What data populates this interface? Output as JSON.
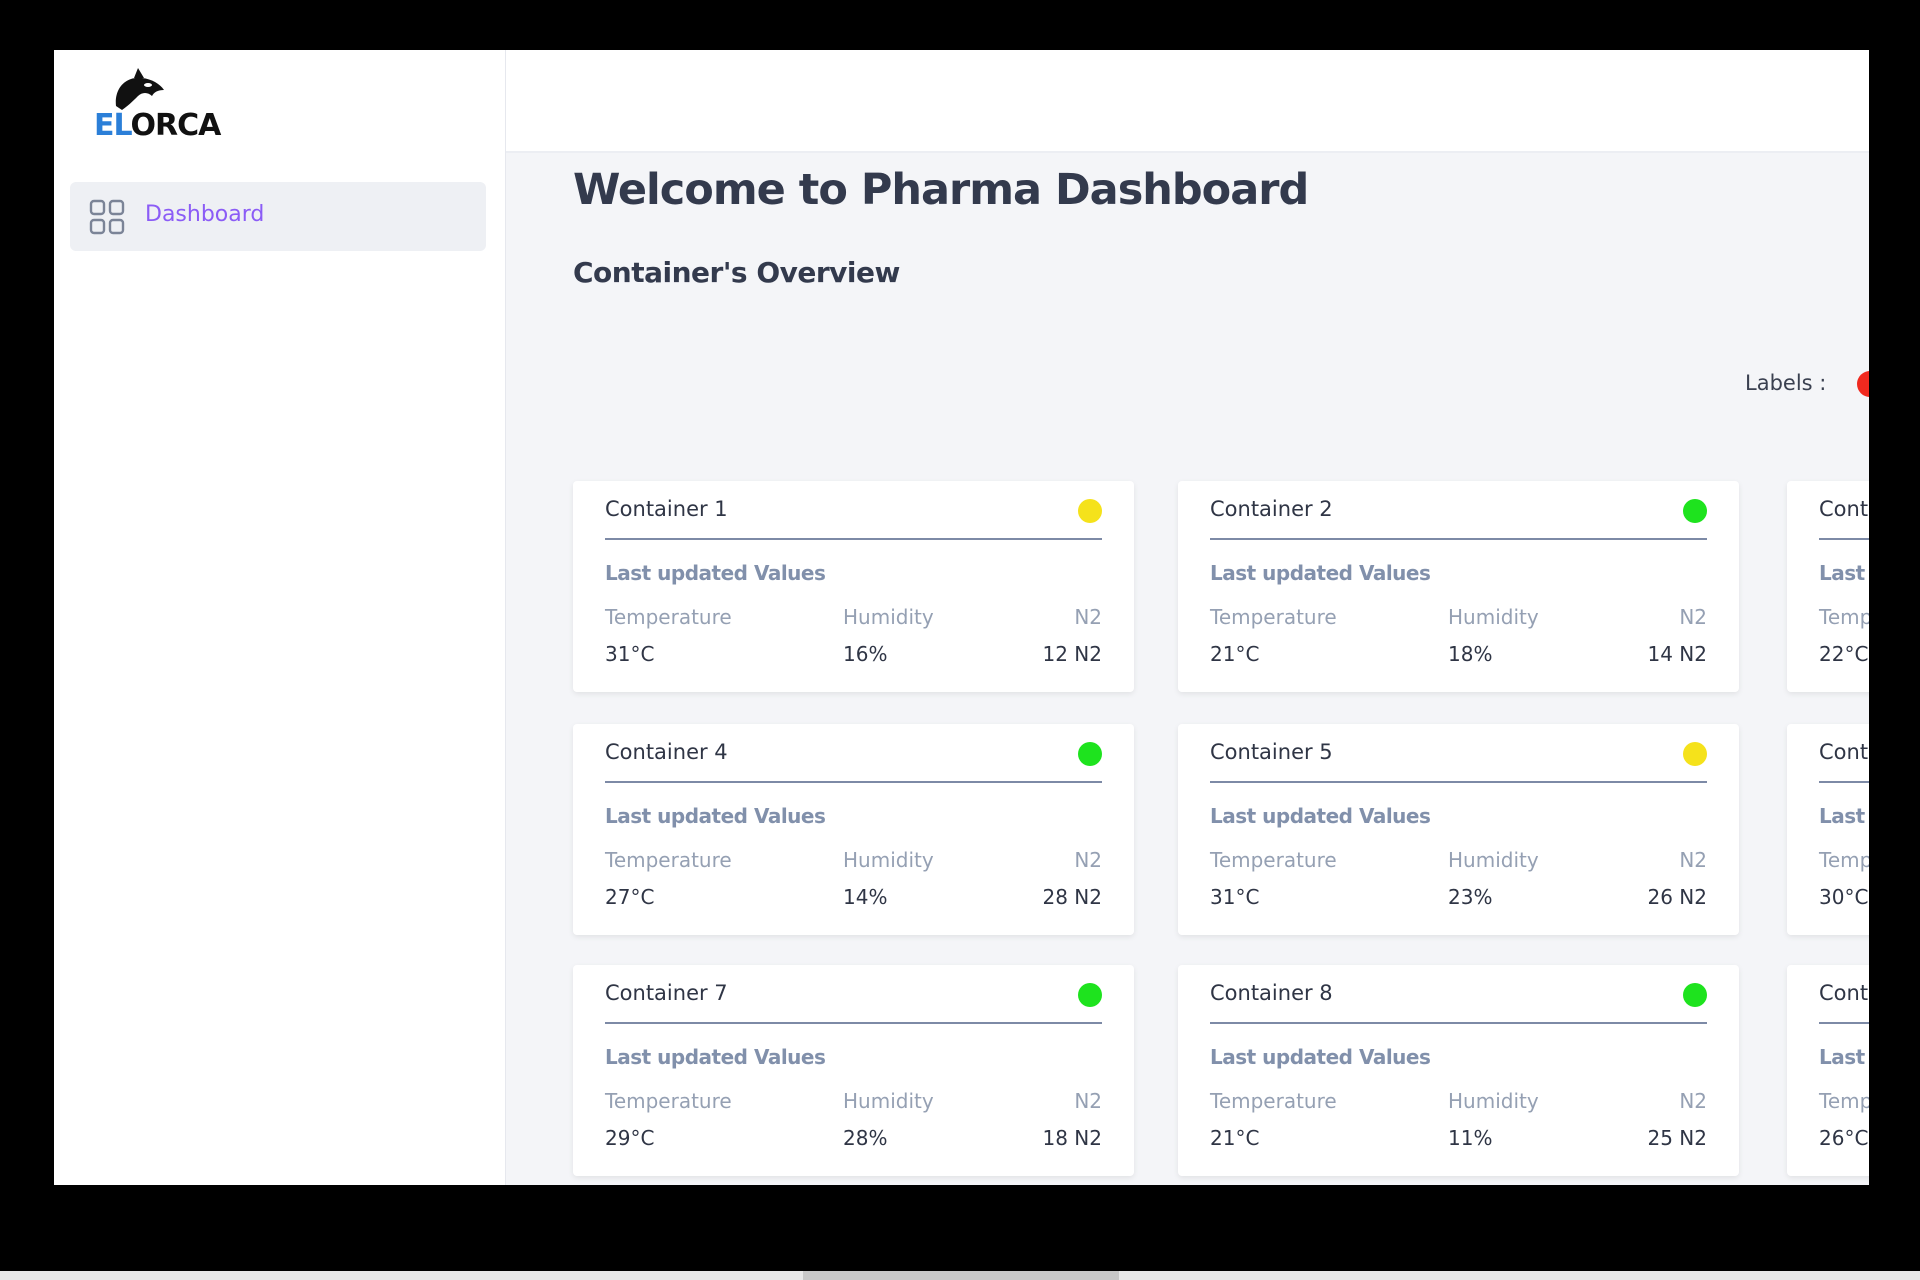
{
  "logo": {
    "part1": "EL",
    "part2": "ORCA"
  },
  "sidebar": {
    "items": [
      {
        "label": "Dashboard"
      }
    ]
  },
  "page": {
    "title": "Welcome to Pharma Dashboard",
    "subtitle": "Container's Overview",
    "labels_caption": "Labels :"
  },
  "cards": [
    {
      "title": "Container 1",
      "status": "#f5e21b",
      "heading": "Last updated Values",
      "fields": [
        {
          "label": "Temperature",
          "value": "31°C"
        },
        {
          "label": "Humidity",
          "value": "16%"
        },
        {
          "label": "N2",
          "value": "12 N2"
        }
      ]
    },
    {
      "title": "Container 2",
      "status": "#1ee31e",
      "heading": "Last updated Values",
      "fields": [
        {
          "label": "Temperature",
          "value": "21°C"
        },
        {
          "label": "Humidity",
          "value": "18%"
        },
        {
          "label": "N2",
          "value": "14 N2"
        }
      ]
    },
    {
      "title": "Cont",
      "heading": "Last",
      "fields": [
        {
          "label": "Temp",
          "value": "22°C"
        }
      ]
    },
    {
      "title": "Container 4",
      "status": "#1ee31e",
      "heading": "Last updated Values",
      "fields": [
        {
          "label": "Temperature",
          "value": "27°C"
        },
        {
          "label": "Humidity",
          "value": "14%"
        },
        {
          "label": "N2",
          "value": "28 N2"
        }
      ]
    },
    {
      "title": "Container 5",
      "status": "#f5e21b",
      "heading": "Last updated Values",
      "fields": [
        {
          "label": "Temperature",
          "value": "31°C"
        },
        {
          "label": "Humidity",
          "value": "23%"
        },
        {
          "label": "N2",
          "value": "26 N2"
        }
      ]
    },
    {
      "title": "Cont",
      "heading": "Last",
      "fields": [
        {
          "label": "Temp",
          "value": "30°C"
        }
      ]
    },
    {
      "title": "Container 7",
      "status": "#1ee31e",
      "heading": "Last updated Values",
      "fields": [
        {
          "label": "Temperature",
          "value": "29°C"
        },
        {
          "label": "Humidity",
          "value": "28%"
        },
        {
          "label": "N2",
          "value": "18 N2"
        }
      ]
    },
    {
      "title": "Container 8",
      "status": "#1ee31e",
      "heading": "Last updated Values",
      "fields": [
        {
          "label": "Temperature",
          "value": "21°C"
        },
        {
          "label": "Humidity",
          "value": "11%"
        },
        {
          "label": "N2",
          "value": "25 N2"
        }
      ]
    },
    {
      "title": "Cont",
      "heading": "Last",
      "fields": [
        {
          "label": "Temp",
          "value": "26°C"
        }
      ]
    }
  ]
}
